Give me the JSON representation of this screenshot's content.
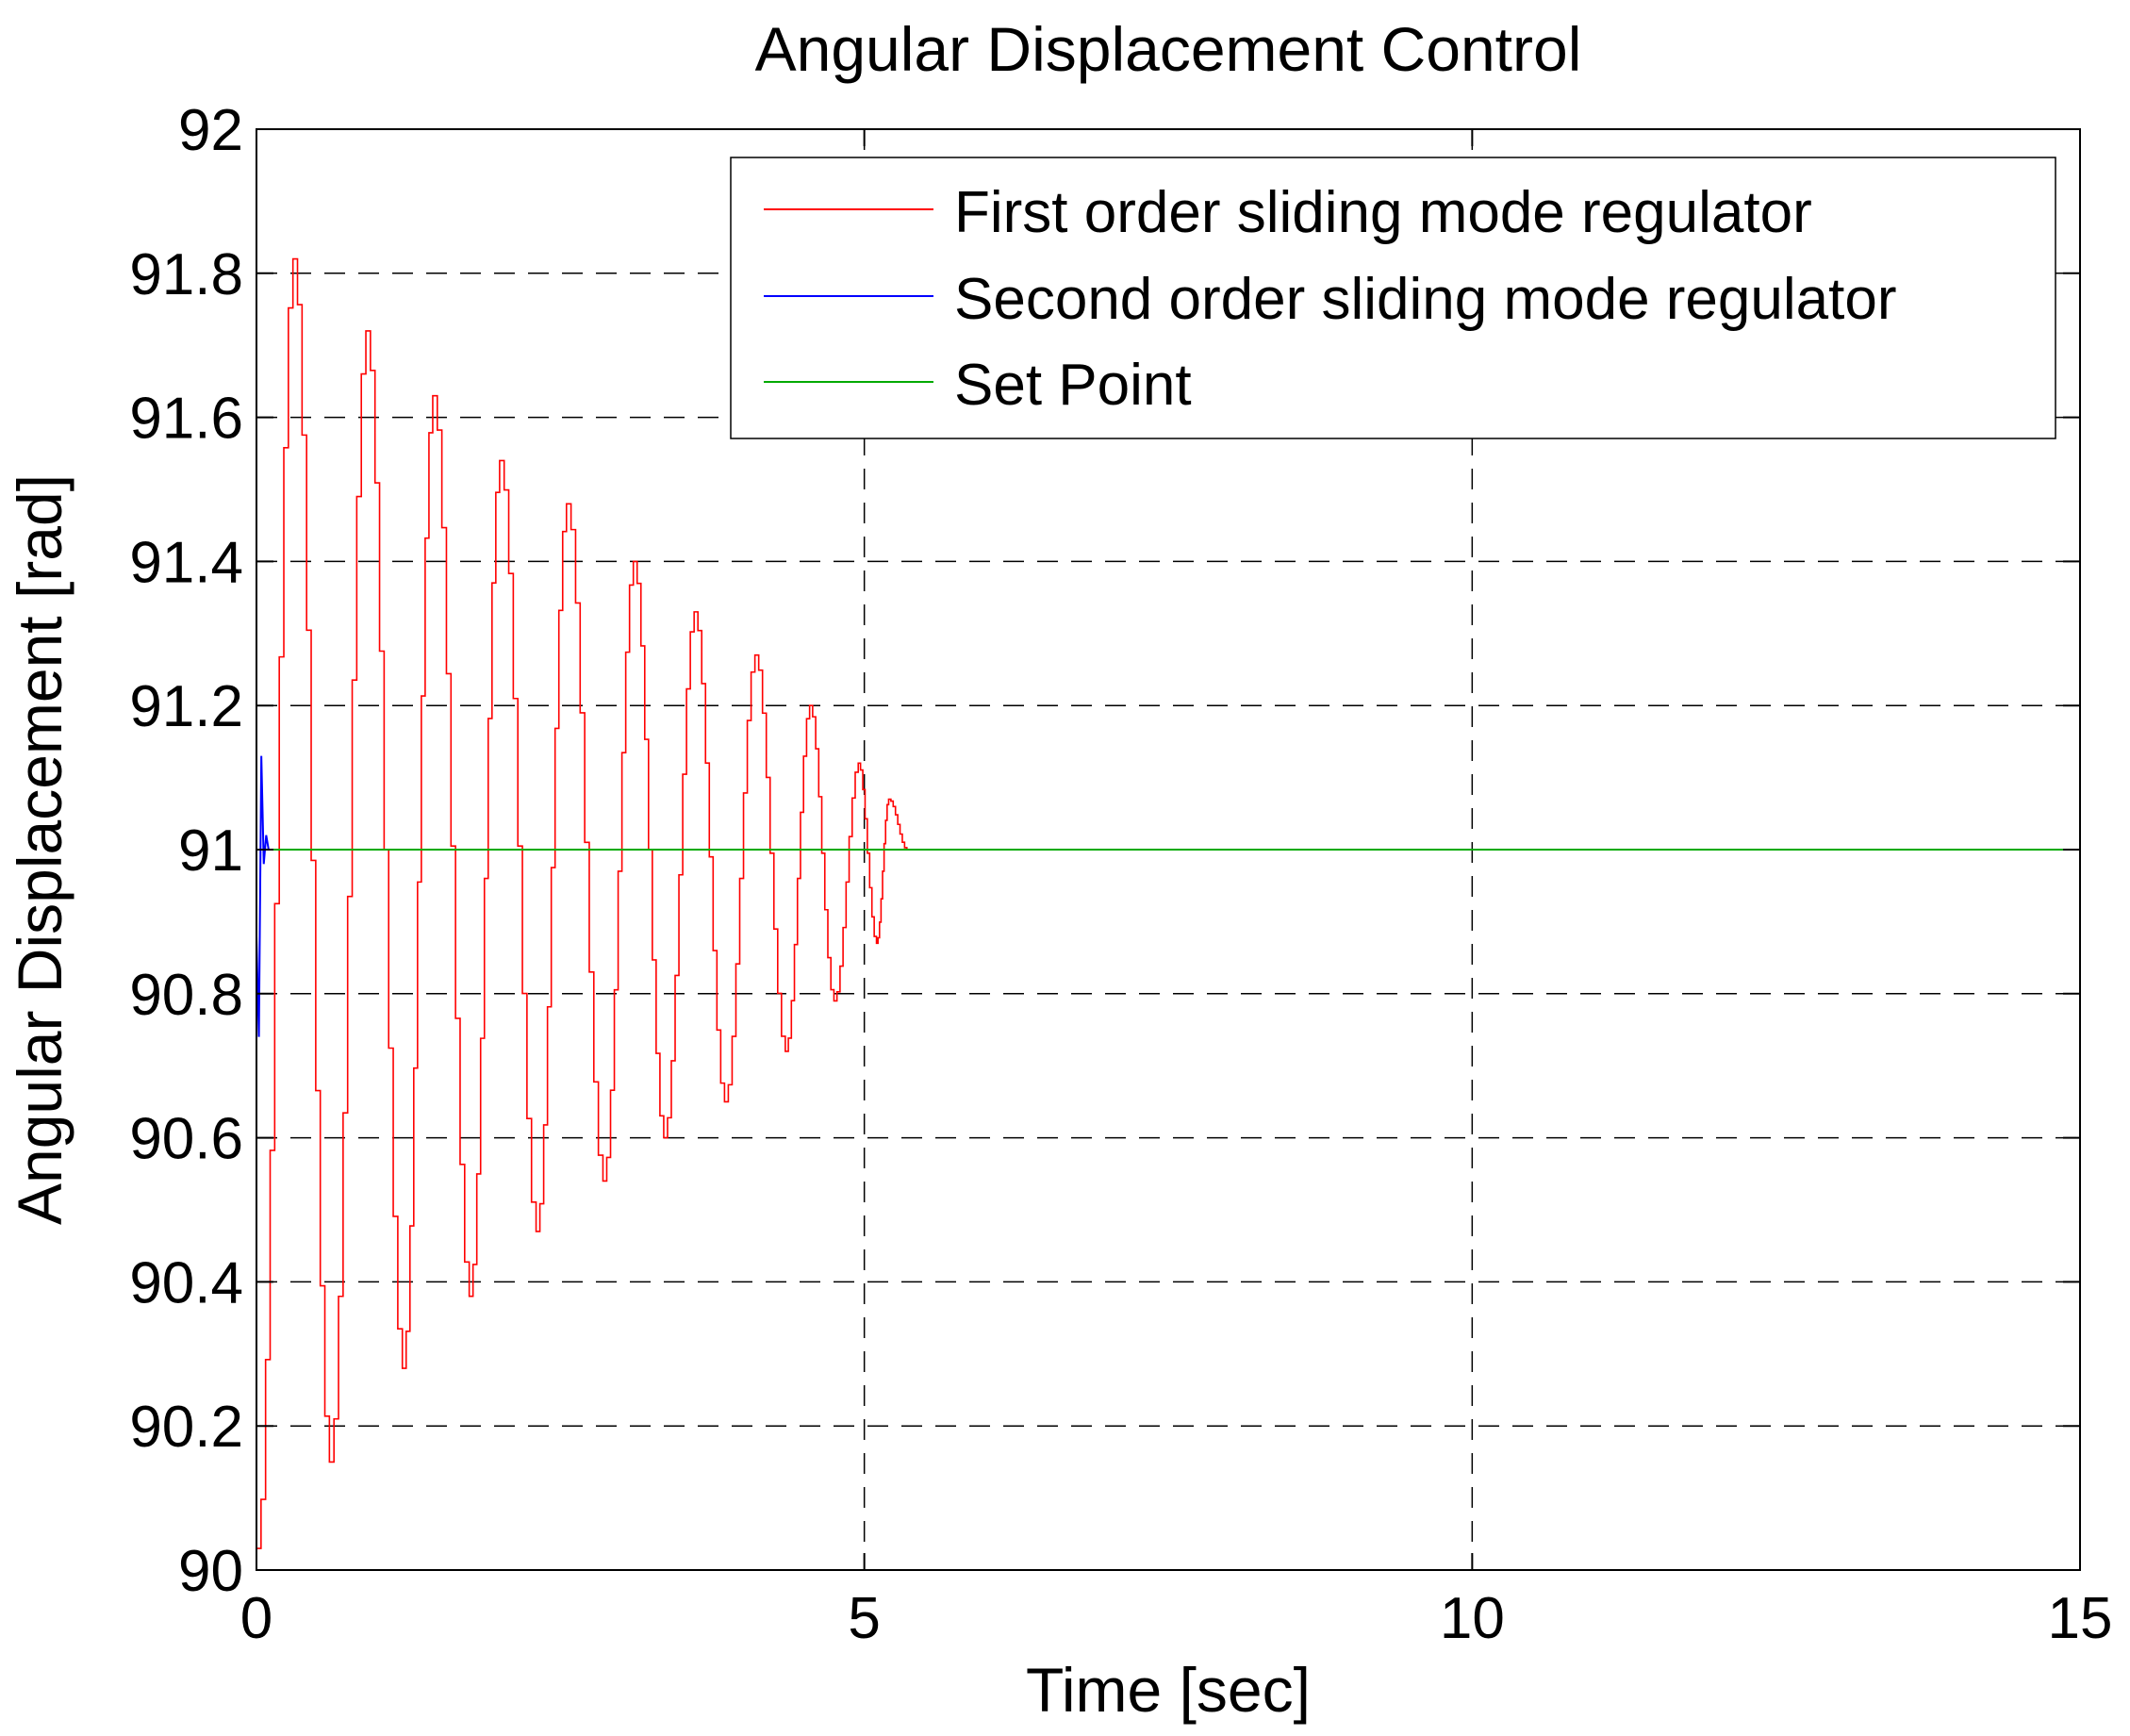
{
  "chart_data": {
    "type": "line",
    "title": "Angular Displacement Control",
    "xlabel": "Time [sec]",
    "ylabel": "Angular Displacement [rad]",
    "xlim": [
      0,
      15
    ],
    "ylim": [
      90,
      92
    ],
    "xticks": [
      0,
      5,
      10,
      15
    ],
    "xtick_labels": [
      "0",
      "5",
      "10",
      "15"
    ],
    "yticks": [
      90,
      90.2,
      90.4,
      90.6,
      90.8,
      91,
      91.2,
      91.4,
      91.6,
      91.8,
      92
    ],
    "ytick_labels": [
      "90",
      "90.2",
      "90.4",
      "90.6",
      "90.8",
      "91",
      "91.2",
      "91.4",
      "91.6",
      "91.8",
      "92"
    ],
    "grid": true,
    "legend_position": "top-right",
    "series": [
      {
        "name": "First order sliding mode regulator",
        "color": "#ff0000",
        "x": [
          0,
          0.3,
          0.6,
          0.9,
          1.2,
          1.45,
          1.75,
          2.0,
          2.3,
          2.55,
          2.85,
          3.1,
          3.35,
          3.6,
          3.85,
          4.1,
          4.35,
          4.55,
          4.75,
          4.95,
          5.1,
          5.2,
          5.35
        ],
        "y": [
          90.03,
          91.82,
          90.15,
          91.72,
          90.28,
          91.63,
          90.38,
          91.54,
          90.47,
          91.48,
          90.54,
          91.4,
          90.6,
          91.33,
          90.65,
          91.27,
          90.72,
          91.2,
          90.79,
          91.12,
          90.87,
          91.07,
          91.0
        ]
      },
      {
        "name": "Second order sliding mode regulator",
        "color": "#0000ff",
        "x": [
          0,
          0.02,
          0.04,
          0.06,
          0.08,
          0.1
        ],
        "y": [
          90.88,
          90.74,
          91.13,
          90.98,
          91.02,
          91.0
        ]
      },
      {
        "name": "Set Point",
        "color": "#00aa00",
        "x": [
          0,
          15
        ],
        "y": [
          91,
          91
        ]
      }
    ]
  }
}
